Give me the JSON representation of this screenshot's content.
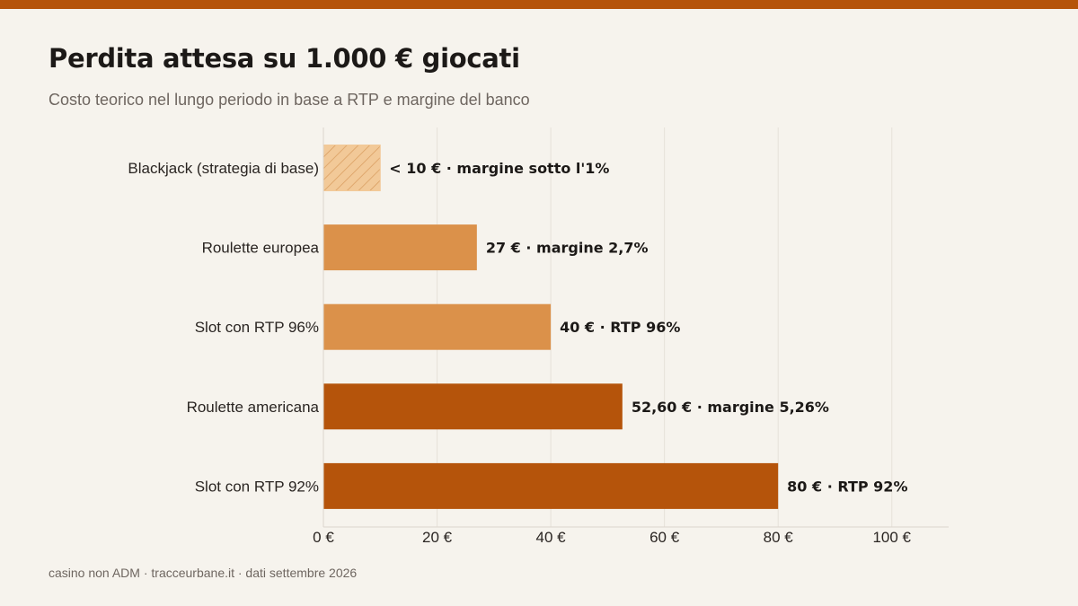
{
  "title": "Perdita attesa su 1.000 € giocati",
  "subtitle": "Costo teorico nel lungo periodo in base a RTP e margine del banco",
  "source": "casino non ADM · tracceurbane.it · dati settembre 2026",
  "colors": {
    "accent": "#b5540b",
    "light_bar": "#db914a",
    "hatched_bar": "#f2c998",
    "hatch_line": "#d79a5c"
  },
  "chart_data": {
    "type": "bar",
    "orientation": "horizontal",
    "categories": [
      "Blackjack (strategia di base)",
      "Roulette europea",
      "Slot con RTP 96%",
      "Roulette americana",
      "Slot con RTP 92%"
    ],
    "values": [
      10,
      27,
      40,
      52.6,
      80
    ],
    "value_labels": [
      "< 10 € · margine sotto l'1%",
      "27 € · margine 2,7%",
      "40 € · RTP 96%",
      "52,60 € · margine 5,26%",
      "80 € · RTP 92%"
    ],
    "bar_styles": [
      "hatched",
      "light",
      "light",
      "dark",
      "dark"
    ],
    "xlim": [
      0,
      110
    ],
    "xticks": [
      0,
      20,
      40,
      60,
      80,
      100
    ],
    "xtick_labels": [
      "0 €",
      "20 €",
      "40 €",
      "60 €",
      "80 €",
      "100 €"
    ],
    "grid": true
  }
}
